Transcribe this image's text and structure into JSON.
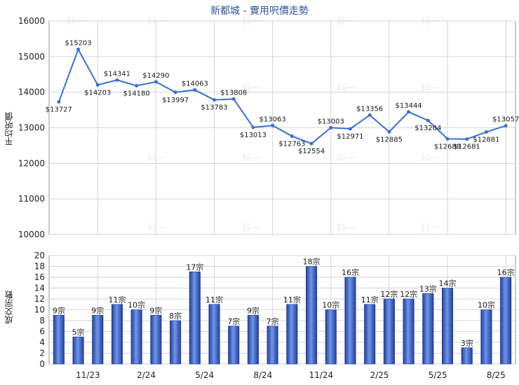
{
  "chart_data": [
    {
      "type": "line",
      "title": "新都城 - 實用呎價走勢",
      "ylabel": "平均呎價",
      "ylim": [
        10000,
        16000
      ],
      "yticks": [
        10000,
        11000,
        12000,
        13000,
        14000,
        15000,
        16000
      ],
      "grid": true,
      "color": "#3a6fd8",
      "values": [
        13727,
        15203,
        14203,
        14341,
        14180,
        14290,
        13997,
        14063,
        13783,
        13808,
        13013,
        13063,
        12763,
        12554,
        13003,
        12971,
        13356,
        12885,
        13444,
        13204,
        12688,
        12681,
        12881,
        13057
      ],
      "labels": [
        "$13727",
        "$15203",
        "$14203",
        "$14341",
        "$14180",
        "$14290",
        "$13997",
        "$14063",
        "$13783",
        "$13808",
        "$13013",
        "$13063",
        "$12763",
        "$12554",
        "$13003",
        "$12971",
        "$13356",
        "$12885",
        "$13444",
        "$13204",
        "$12688",
        "$12681",
        "$12881",
        "$13057"
      ]
    },
    {
      "type": "bar",
      "ylabel": "成交宗數",
      "ylim": [
        0,
        20
      ],
      "yticks": [
        0,
        2,
        4,
        6,
        8,
        10,
        12,
        14,
        16,
        18,
        20
      ],
      "grid": true,
      "color": "#3a63c9",
      "values": [
        9,
        5,
        9,
        11,
        10,
        9,
        8,
        17,
        11,
        7,
        9,
        7,
        11,
        18,
        10,
        16,
        11,
        12,
        12,
        13,
        14,
        3,
        10,
        16
      ],
      "labels": [
        "9宗",
        "5宗",
        "9宗",
        "11宗",
        "10宗",
        "9宗",
        "8宗",
        "17宗",
        "11宗",
        "7宗",
        "9宗",
        "7宗",
        "11宗",
        "18宗",
        "10宗",
        "16宗",
        "11宗",
        "12宗",
        "12宗",
        "13宗",
        "14宗",
        "3宗",
        "10宗",
        "16宗"
      ],
      "xtick_labels": [
        "11/23",
        "2/24",
        "5/24",
        "8/24",
        "11/24",
        "2/25",
        "5/25",
        "8/25"
      ],
      "xtick_indices": [
        2,
        5,
        8,
        11,
        14,
        17,
        20,
        23
      ]
    }
  ],
  "watermark": "科一"
}
